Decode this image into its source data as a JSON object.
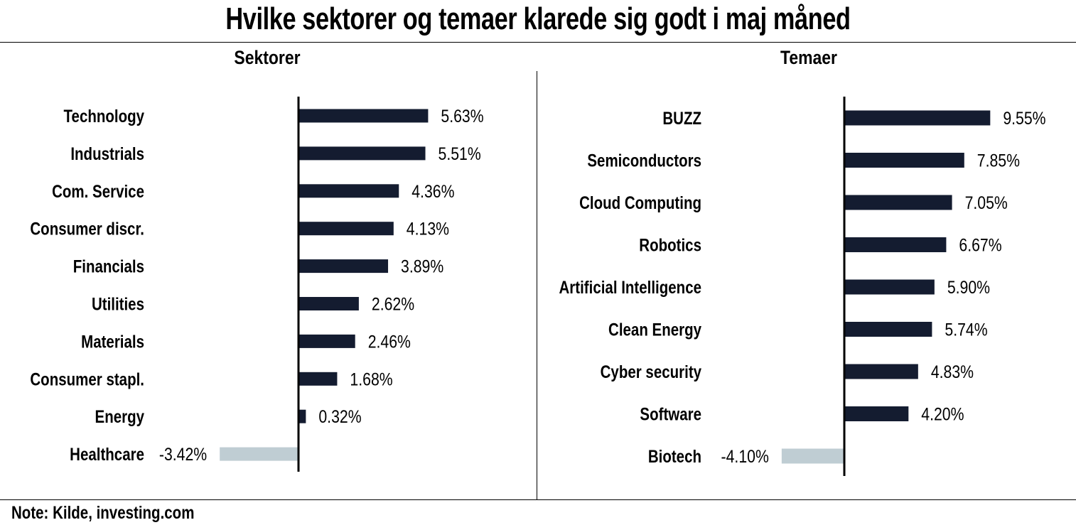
{
  "title": "Hvilke sektorer og temaer klarede sig godt i maj måned",
  "note": "Note: Kilde, investing.com",
  "colors": {
    "positive": "#141c30",
    "negative": "#bfcdd3"
  },
  "chart_data": [
    {
      "type": "bar",
      "orientation": "horizontal",
      "title": "Sektorer",
      "categories": [
        "Technology",
        "Industrials",
        "Com. Service",
        "Consumer discr.",
        "Financials",
        "Utilities",
        "Materials",
        "Consumer stapl.",
        "Energy",
        "Healthcare"
      ],
      "values": [
        5.63,
        5.51,
        4.36,
        4.13,
        3.89,
        2.62,
        2.46,
        1.68,
        0.32,
        -3.42
      ],
      "labels": [
        "5.63%",
        "5.51%",
        "4.36%",
        "4.13%",
        "3.89%",
        "2.62%",
        "2.46%",
        "1.68%",
        "0.32%",
        "-3.42%"
      ],
      "unit": "%"
    },
    {
      "type": "bar",
      "orientation": "horizontal",
      "title": "Temaer",
      "categories": [
        "BUZZ",
        "Semiconductors",
        "Cloud Computing",
        "Robotics",
        "Artificial Intelligence",
        "Clean Energy",
        "Cyber security",
        "Software",
        "Biotech"
      ],
      "values": [
        9.55,
        7.85,
        7.05,
        6.67,
        5.9,
        5.74,
        4.83,
        4.2,
        -4.1
      ],
      "labels": [
        "9.55%",
        "7.85%",
        "7.05%",
        "6.67%",
        "5.90%",
        "5.74%",
        "4.83%",
        "4.20%",
        "-4.10%"
      ],
      "unit": "%"
    }
  ]
}
